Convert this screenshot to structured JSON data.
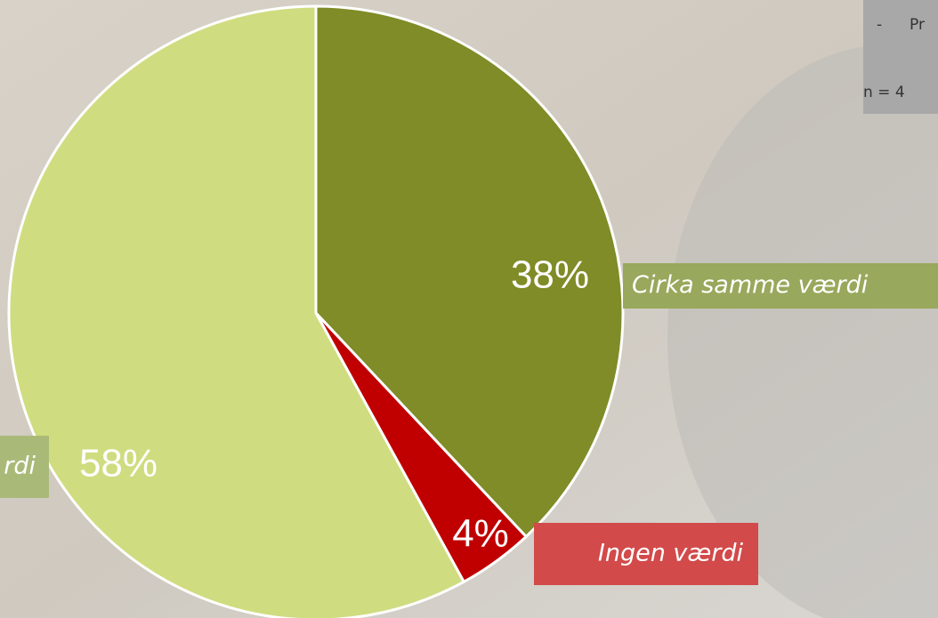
{
  "chart_data": {
    "type": "pie",
    "categories": [
      "Cirka samme værdi",
      "Ingen værdi",
      "rdi"
    ],
    "values": [
      38,
      4,
      58
    ],
    "value_labels": [
      "38%",
      "4%",
      "58%"
    ],
    "colors": [
      "#7f8c27",
      "#c00000",
      "#d0dc80"
    ],
    "label_colors": [
      "#98a85c",
      "#d24a4a",
      "#a9ba78"
    ],
    "annotations": [
      "-",
      "Pr",
      "n = 4"
    ]
  }
}
